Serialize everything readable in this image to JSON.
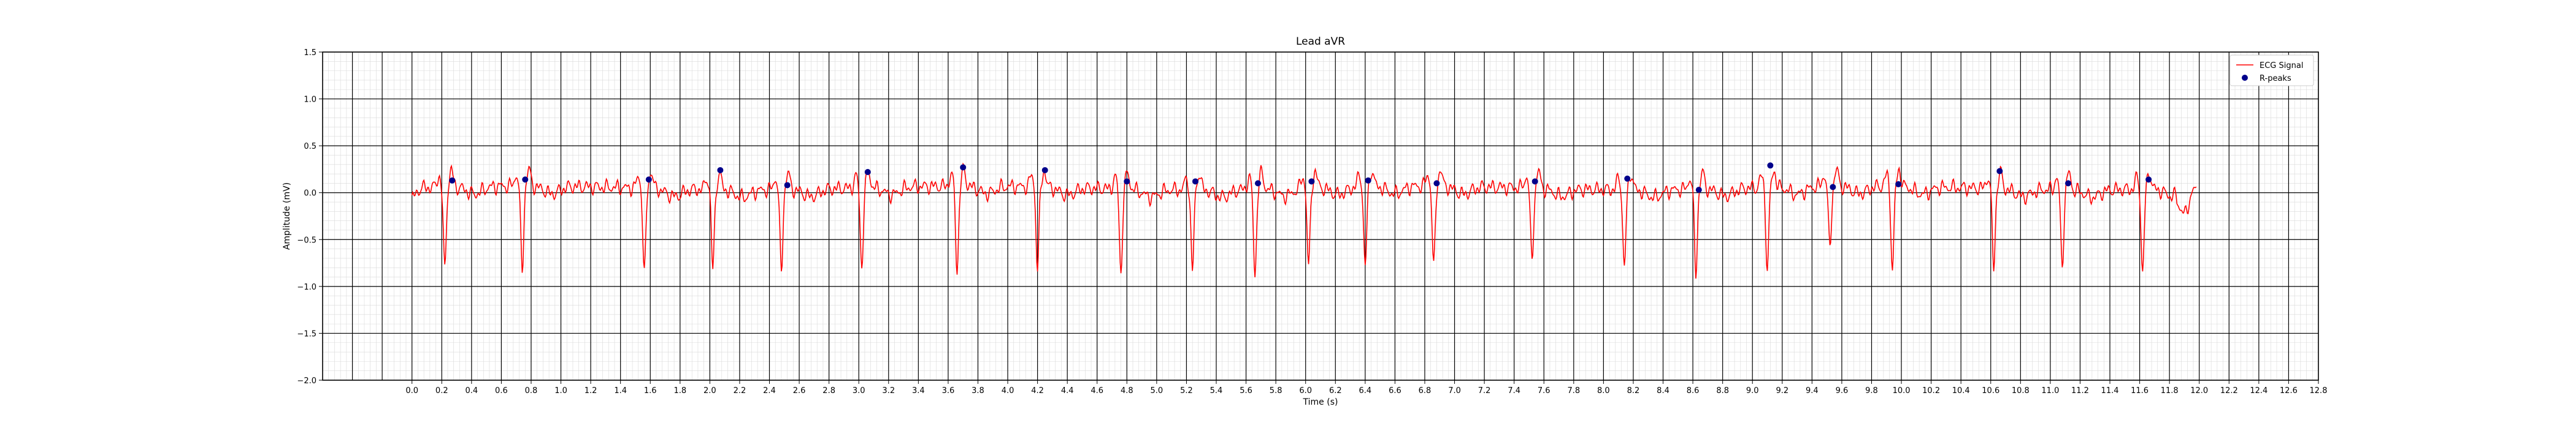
{
  "chart_data": {
    "type": "line",
    "title": "Lead aVR",
    "xlabel": "Time (s)",
    "ylabel": "Amplitude (mV)",
    "xlim": [
      -0.6,
      12.8
    ],
    "ylim": [
      -2.0,
      1.5
    ],
    "x_ticks": [
      "0.0",
      "0.2",
      "0.4",
      "0.6",
      "0.8",
      "1.0",
      "1.2",
      "1.4",
      "1.6",
      "1.8",
      "2.0",
      "2.2",
      "2.4",
      "2.6",
      "2.8",
      "3.0",
      "3.2",
      "3.4",
      "3.6",
      "3.8",
      "4.0",
      "4.2",
      "4.4",
      "4.6",
      "4.8",
      "5.0",
      "5.2",
      "5.4",
      "5.6",
      "5.8",
      "6.0",
      "6.2",
      "6.4",
      "6.6",
      "6.8",
      "7.0",
      "7.2",
      "7.4",
      "7.6",
      "7.8",
      "8.0",
      "8.2",
      "8.4",
      "8.6",
      "8.8",
      "9.0",
      "9.2",
      "9.4",
      "9.6",
      "9.8",
      "10.0",
      "10.2",
      "10.4",
      "10.6",
      "10.8",
      "11.0",
      "11.2",
      "11.4",
      "11.6",
      "11.8",
      "12.0",
      "12.2",
      "12.4",
      "12.6",
      "12.8"
    ],
    "y_ticks": [
      "1.5",
      "1.0",
      "0.5",
      "0.0",
      "−0.5",
      "−1.0",
      "−1.5",
      "−2.0"
    ],
    "grid": true,
    "legend_position": "top-right",
    "series": [
      {
        "name": "ECG Signal",
        "color": "#ff0000",
        "kind": "line",
        "sampling_interval_s": 0.01,
        "x_start": 0.0,
        "x_end": 11.98,
        "beats_trough_times_s": [
          0.22,
          0.74,
          1.56,
          2.02,
          2.48,
          3.02,
          3.66,
          4.2,
          4.76,
          5.24,
          5.66,
          6.02,
          6.4,
          6.86,
          7.52,
          8.14,
          8.62,
          9.1,
          9.52,
          9.94,
          10.62,
          11.08,
          11.62
        ],
        "beats_trough_values_mv": [
          -0.82,
          -0.86,
          -0.88,
          -0.8,
          -0.84,
          -0.8,
          -0.85,
          -0.83,
          -0.85,
          -0.82,
          -0.86,
          -0.8,
          -0.83,
          -0.82,
          -0.75,
          -0.8,
          -0.86,
          -0.82,
          -0.62,
          -0.84,
          -0.8,
          -0.78,
          -0.85
        ],
        "baseline_mv": 0.05
      },
      {
        "name": "R-peaks",
        "color": "#00008b",
        "kind": "scatter",
        "x": [
          0.27,
          0.76,
          1.59,
          2.07,
          2.52,
          3.06,
          3.7,
          4.25,
          4.8,
          5.26,
          5.68,
          6.04,
          6.42,
          6.88,
          7.54,
          8.16,
          8.64,
          9.12,
          9.54,
          9.98,
          10.66,
          11.12,
          11.66
        ],
        "y": [
          0.13,
          0.14,
          0.14,
          0.24,
          0.08,
          0.22,
          0.27,
          0.24,
          0.12,
          0.12,
          0.1,
          0.12,
          0.13,
          0.1,
          0.12,
          0.15,
          0.03,
          0.29,
          0.06,
          0.09,
          0.23,
          0.1,
          0.14
        ]
      }
    ]
  }
}
